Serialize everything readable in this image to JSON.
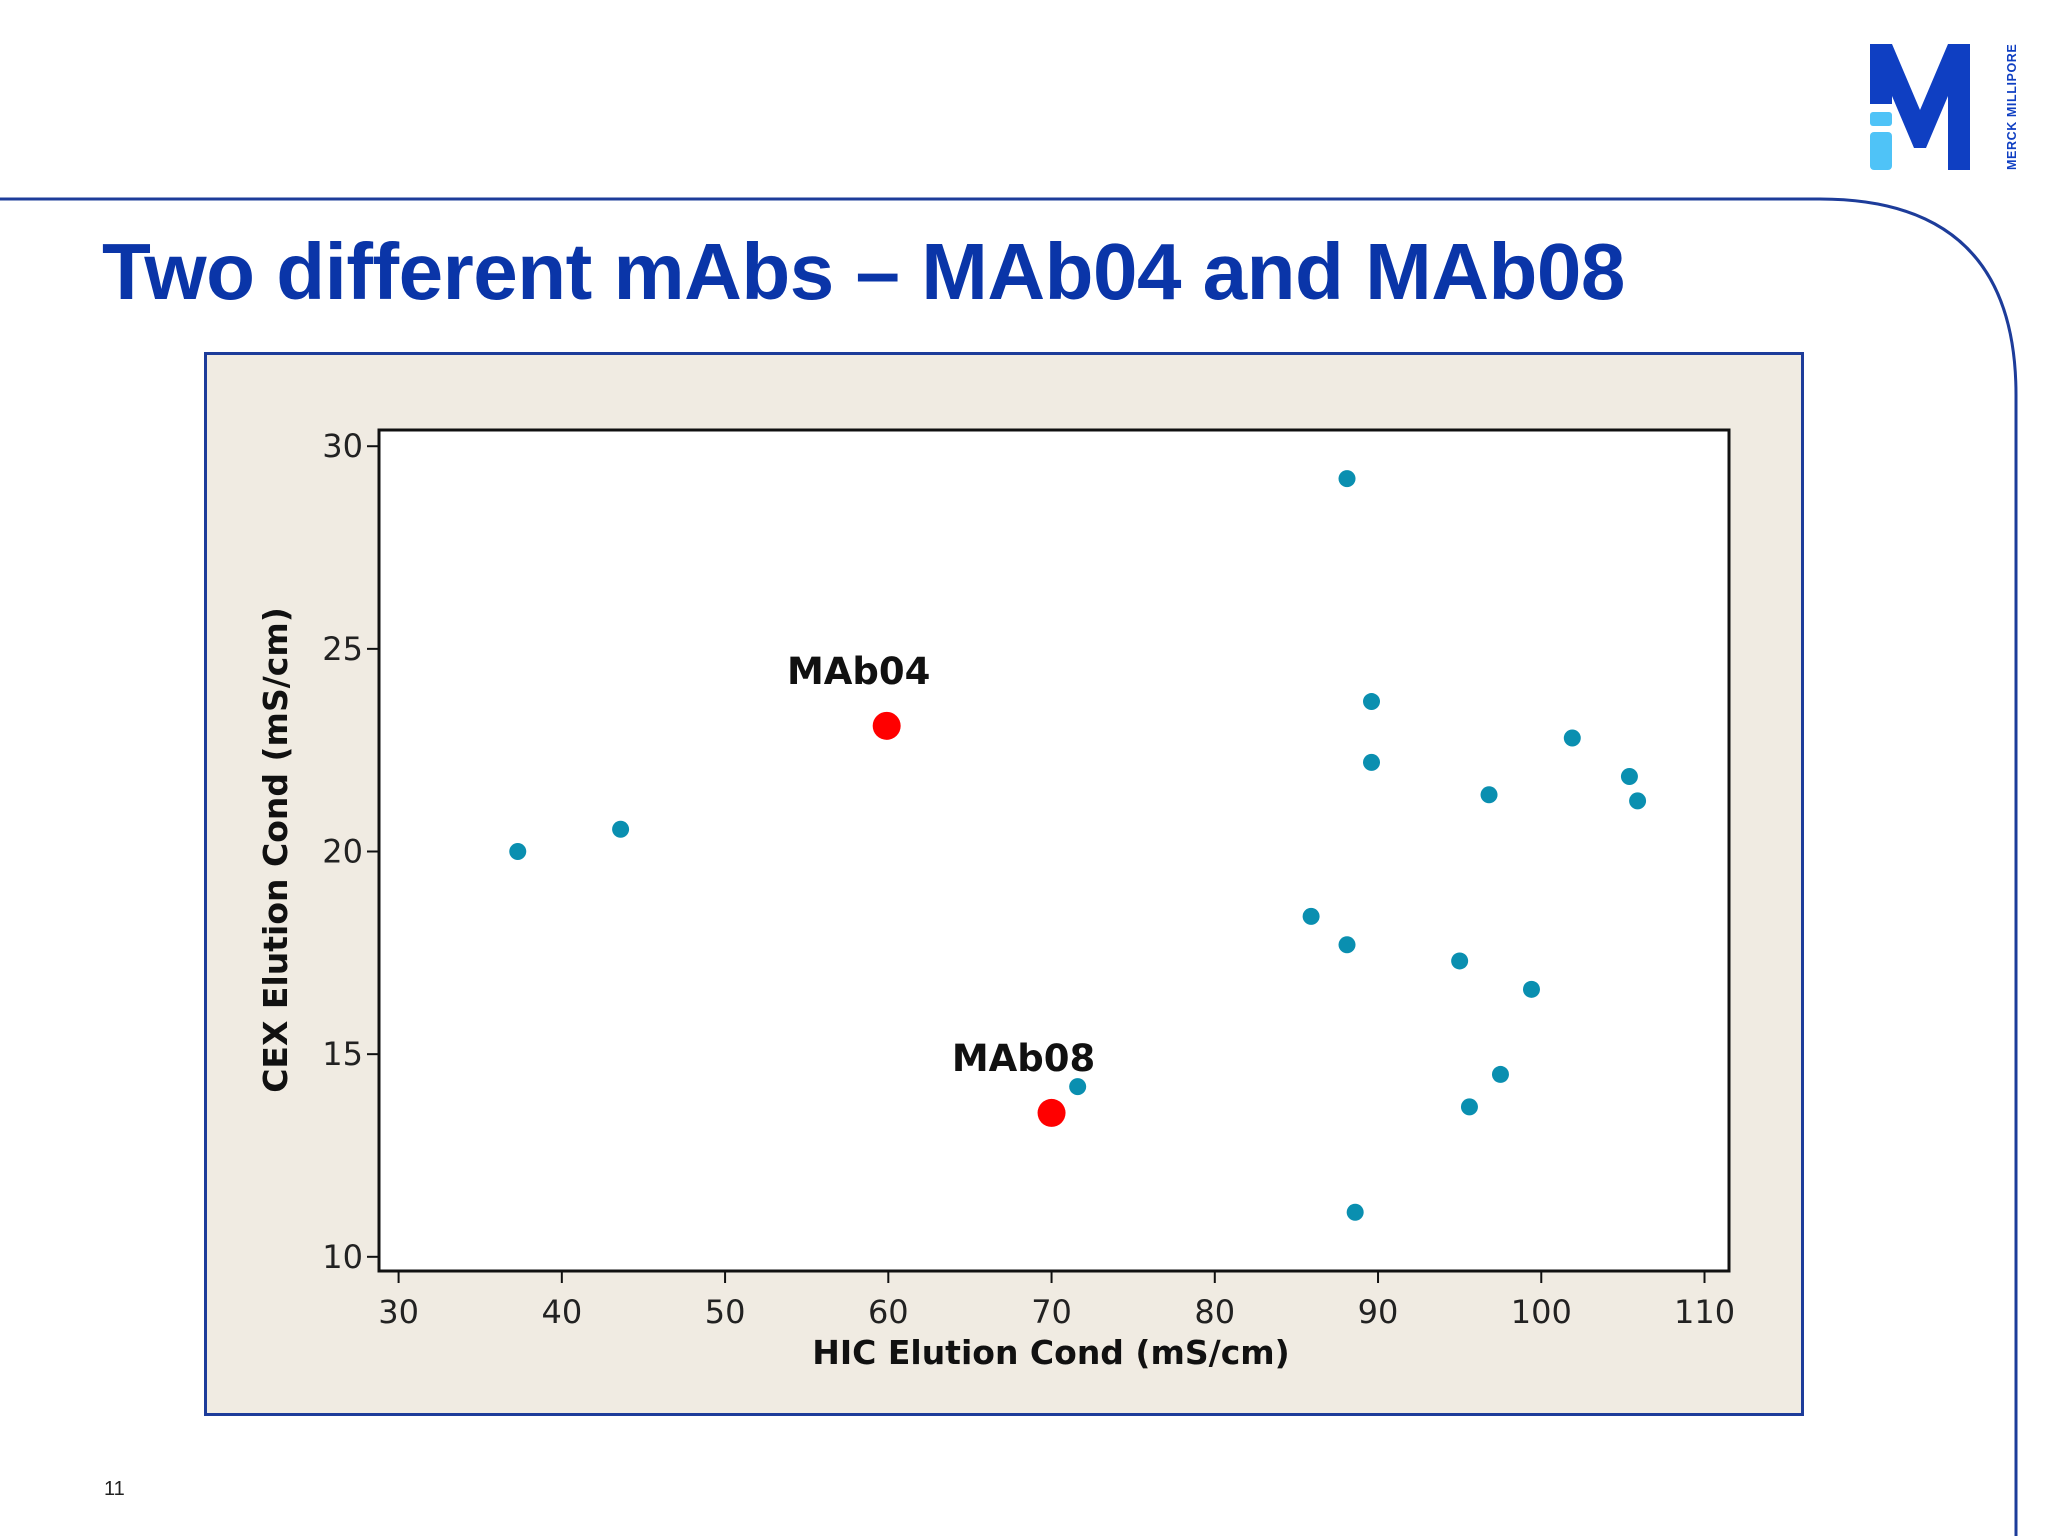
{
  "slide": {
    "title": "Two different mAbs – MAb04 and MAb08",
    "page_number": "11",
    "brand_colors": {
      "title": "#0a35a8",
      "frame": "#1d3c9a",
      "panel": "#f0ebe2"
    }
  },
  "logo": {
    "letter": "M",
    "text": "MERCK MILLIPORE",
    "colors": {
      "dark": "#0f3fc2",
      "light": "#4fc3f7"
    }
  },
  "chart_data": {
    "type": "scatter",
    "xlabel": "HIC Elution Cond (mS/cm)",
    "ylabel": "CEX Elution Cond (mS/cm)",
    "xlim": [
      28.8,
      111.5
    ],
    "ylim": [
      9.65,
      30.4
    ],
    "xticks": [
      30,
      40,
      50,
      60,
      70,
      80,
      90,
      100,
      110
    ],
    "yticks": [
      10,
      15,
      20,
      25,
      30
    ],
    "grid": false,
    "series": [
      {
        "color": "#0a8fb0",
        "points": [
          {
            "x": 37.3,
            "y": 20.0
          },
          {
            "x": 43.6,
            "y": 20.55
          },
          {
            "x": 71.6,
            "y": 14.2
          },
          {
            "x": 85.9,
            "y": 18.4
          },
          {
            "x": 88.1,
            "y": 29.2
          },
          {
            "x": 88.1,
            "y": 17.7
          },
          {
            "x": 88.6,
            "y": 11.1
          },
          {
            "x": 89.6,
            "y": 23.7
          },
          {
            "x": 89.6,
            "y": 22.2
          },
          {
            "x": 95.0,
            "y": 17.3
          },
          {
            "x": 95.6,
            "y": 13.7
          },
          {
            "x": 96.8,
            "y": 21.4
          },
          {
            "x": 97.5,
            "y": 14.5
          },
          {
            "x": 99.4,
            "y": 16.6
          },
          {
            "x": 101.9,
            "y": 22.8
          },
          {
            "x": 105.4,
            "y": 21.85
          },
          {
            "x": 105.9,
            "y": 21.25
          }
        ]
      },
      {
        "color": "#ff0000",
        "points": [
          {
            "x": 59.9,
            "y": 23.1,
            "label": "MAb04"
          },
          {
            "x": 70.0,
            "y": 13.55,
            "label": "MAb08"
          }
        ]
      }
    ]
  }
}
